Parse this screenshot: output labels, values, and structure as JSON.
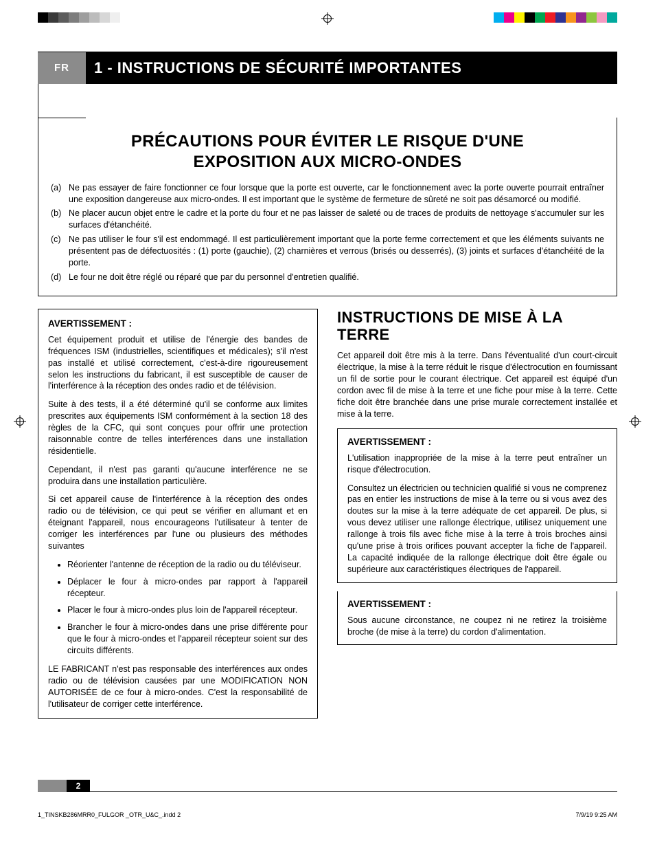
{
  "printer_marks": {
    "gray_swatches": [
      "#000000",
      "#3a3a3a",
      "#5c5c5c",
      "#7d7d7d",
      "#9e9e9e",
      "#bcbcbc",
      "#d7d7d7",
      "#efefef"
    ],
    "color_swatches": [
      "#00aeef",
      "#ec008c",
      "#fff200",
      "#000000",
      "#00a651",
      "#ed1c24",
      "#2e3192",
      "#f7941d",
      "#92278f",
      "#8dc63f",
      "#f49ac1",
      "#00a99d"
    ]
  },
  "header": {
    "lang": "FR",
    "title": "1 - INSTRUCTIONS DE SÉCURITÉ IMPORTANTES"
  },
  "precautions": {
    "title_line1": "PRÉCAUTIONS POUR ÉVITER LE RISQUE D'UNE",
    "title_line2": "EXPOSITION AUX MICRO-ONDES",
    "items": [
      {
        "label": "(a)",
        "text": "Ne pas essayer de faire fonctionner ce four lorsque que la porte est ouverte, car le fonctionnement avec la porte ouverte pourrait entraîner une exposition dangereuse aux micro-ondes. Il est important que le système de fermeture de sûreté ne soit pas désamorcé ou modifié."
      },
      {
        "label": "(b)",
        "text": "Ne placer aucun objet entre le cadre et la porte du four et ne pas laisser de saleté ou de traces de produits de nettoyage s'accumuler sur les surfaces d'étanchéité."
      },
      {
        "label": "(c)",
        "text": "Ne pas utiliser le four s'il est endommagé. Il est particulièrement important que la porte ferme correctement et que les éléments suivants ne présentent pas de défectuosités : (1) porte (gauchie), (2) charnières et verrous (brisés ou desserrés), (3) joints et surfaces d'étanchéité de la porte."
      },
      {
        "label": "(d)",
        "text": "Le four ne doit être réglé ou réparé que par du personnel d'entretien qualifié."
      }
    ]
  },
  "left_column": {
    "heading": "AVERTISSEMENT :",
    "p1": "Cet équipement produit et utilise de l'énergie des bandes de fréquences ISM (industrielles, scientifiques et médicales); s'il n'est pas installé et utilisé correctement, c'est-à-dire rigoureusement selon les instructions du fabricant, il est susceptible de causer de l'interférence à la réception des ondes radio et de télévision.",
    "p2": "Suite à des tests, il a été déterminé qu'il se conforme aux limites prescrites aux équipements ISM conformément à la section 18 des règles de la CFC, qui sont conçues pour offrir une protection raisonnable contre de telles interférences dans une installation résidentielle.",
    "p3": "Cependant, il n'est pas garanti qu'aucune interférence ne se produira dans une installation particulière.",
    "p4": "Si cet appareil cause de l'interférence à la réception des ondes radio ou de télévision, ce qui peut se vérifier en allumant et en éteignant l'appareil, nous encourageons l'utilisateur à tenter de corriger les interférences par l'une ou plusieurs des méthodes suivantes",
    "bullets": [
      "Réorienter l'antenne de réception de la radio ou du téléviseur.",
      "Déplacer le four à micro-ondes par rapport à l'appareil récepteur.",
      "Placer le four à micro-ondes plus loin de l'appareil récepteur.",
      "Brancher le four à micro-ondes dans une prise différente pour que le four à micro-ondes et l'appareil récepteur soient sur des circuits différents."
    ],
    "p5": "LE FABRICANT n'est pas responsable des interférences aux ondes radio ou de télévision causées par une MODIFICATION NON AUTORISÉE de ce four à micro-ondes. C'est la responsabilité de l'utilisateur de corriger cette interférence."
  },
  "right_column": {
    "title": "INSTRUCTIONS DE MISE À LA TERRE",
    "p1": "Cet appareil doit être mis à la terre. Dans l'éventualité d'un court-circuit électrique, la mise à la terre réduit le risque d'électrocution en fournissant un fil de sortie pour le courant électrique. Cet appareil est équipé d'un cordon avec fil de mise à la terre et une fiche pour mise à la terre. Cette fiche doit être branchée dans une prise murale correctement installée et mise à la terre.",
    "box1_heading": "AVERTISSEMENT :",
    "box1_p1": "L'utilisation inappropriée de la mise à la terre peut entraîner un risque d'électrocution.",
    "box1_p2": "Consultez un électricien ou technicien qualifié si vous ne comprenez pas en entier les instructions de mise à la terre ou si vous avez des doutes sur la mise à la terre adéquate de cet appareil. De plus, si vous devez utiliser une rallonge électrique, utilisez uniquement une rallonge à trois fils avec fiche mise à la terre à trois broches ainsi qu'une prise à trois orifices pouvant accepter la fiche de l'appareil. La capacité indiquée de la rallonge électrique doit être égale ou supérieure aux caractéristiques électriques de l'appareil.",
    "box2_heading": "AVERTISSEMENT :",
    "box2_p1": "Sous aucune circonstance, ne coupez ni ne retirez la troisième broche (de mise à la terre) du cordon d'alimentation."
  },
  "footer": {
    "page_number": "2",
    "slug_file": "1_TINSKB286MRR0_FULGOR _OTR_U&C_.indd   2",
    "slug_date": "7/9/19  9:25 AM"
  }
}
